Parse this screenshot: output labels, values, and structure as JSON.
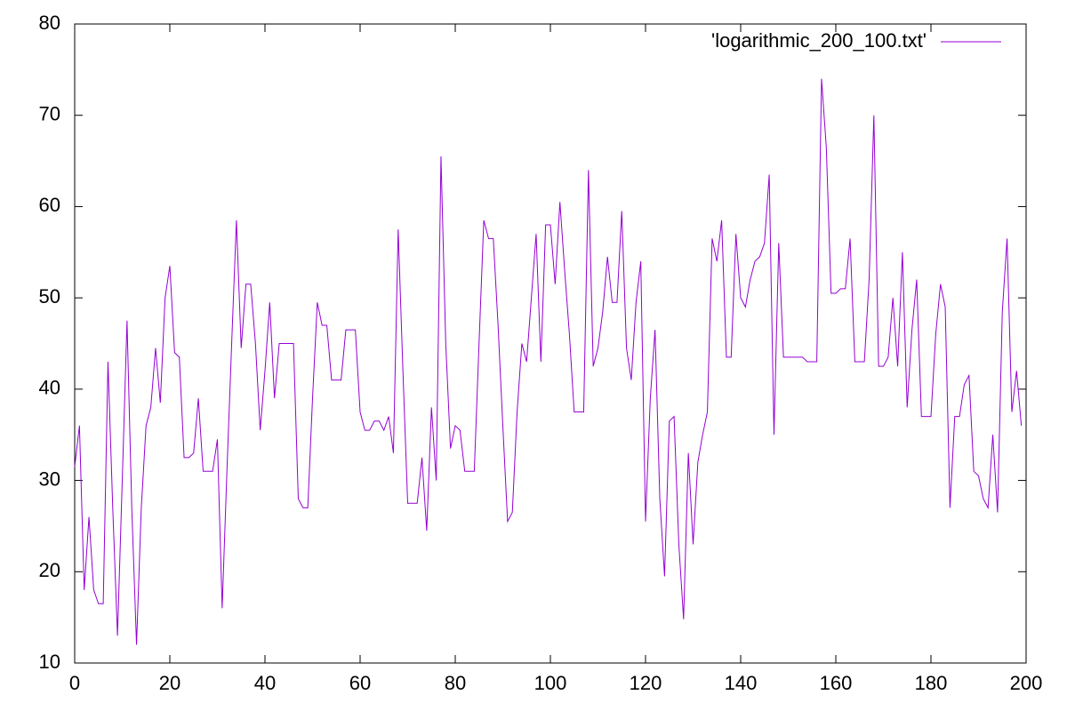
{
  "chart_data": {
    "type": "line",
    "x": [
      0,
      1,
      2,
      3,
      4,
      5,
      6,
      7,
      8,
      9,
      10,
      11,
      12,
      13,
      14,
      15,
      16,
      17,
      18,
      19,
      20,
      21,
      22,
      23,
      24,
      25,
      26,
      27,
      28,
      29,
      30,
      31,
      32,
      33,
      34,
      35,
      36,
      37,
      38,
      39,
      40,
      41,
      42,
      43,
      44,
      45,
      46,
      47,
      48,
      49,
      50,
      51,
      52,
      53,
      54,
      55,
      56,
      57,
      58,
      59,
      60,
      61,
      62,
      63,
      64,
      65,
      66,
      67,
      68,
      69,
      70,
      71,
      72,
      73,
      74,
      75,
      76,
      77,
      78,
      79,
      80,
      81,
      82,
      83,
      84,
      85,
      86,
      87,
      88,
      89,
      90,
      91,
      92,
      93,
      94,
      95,
      96,
      97,
      98,
      99,
      100,
      101,
      102,
      103,
      104,
      105,
      106,
      107,
      108,
      109,
      110,
      111,
      112,
      113,
      114,
      115,
      116,
      117,
      118,
      119,
      120,
      121,
      122,
      123,
      124,
      125,
      126,
      127,
      128,
      129,
      130,
      131,
      132,
      133,
      134,
      135,
      136,
      137,
      138,
      139,
      140,
      141,
      142,
      143,
      144,
      145,
      146,
      147,
      148,
      149,
      150,
      151,
      152,
      153,
      154,
      155,
      156,
      157,
      158,
      159,
      160,
      161,
      162,
      163,
      164,
      165,
      166,
      167,
      168,
      169,
      170,
      171,
      172,
      173,
      174,
      175,
      176,
      177,
      178,
      179,
      180,
      181,
      182,
      183,
      184,
      185,
      186,
      187,
      188,
      189,
      190,
      191,
      192,
      193,
      194,
      195,
      196,
      197,
      198,
      199
    ],
    "series": [
      {
        "name": "'logarithmic_200_100.txt'",
        "color": "#9400d3",
        "values": [
          31.5,
          36,
          18,
          26,
          18,
          16.5,
          16.5,
          43,
          27,
          13,
          30,
          47.5,
          27,
          12,
          27,
          36,
          38,
          44.5,
          38.5,
          50,
          53.5,
          44,
          43.5,
          32.5,
          32.5,
          33,
          39,
          31,
          31,
          31,
          34.5,
          16,
          31,
          45,
          58.5,
          44.5,
          51.5,
          51.5,
          45,
          35.5,
          42,
          49.5,
          39,
          45,
          45,
          45,
          45,
          28,
          27,
          27,
          39,
          49.5,
          47,
          47,
          41,
          41,
          41,
          46.5,
          46.5,
          46.5,
          37.5,
          35.5,
          35.5,
          36.5,
          36.5,
          35.5,
          37,
          33,
          57.5,
          42,
          27.5,
          27.5,
          27.5,
          32.5,
          24.5,
          38,
          30,
          65.5,
          45,
          33.5,
          36,
          35.5,
          31,
          31,
          31,
          45,
          58.5,
          56.5,
          56.5,
          47,
          36,
          25.5,
          26.5,
          37.5,
          45,
          43,
          50,
          57,
          43,
          58,
          58,
          51.5,
          60.5,
          53,
          46,
          37.5,
          37.5,
          37.5,
          64,
          42.5,
          44.5,
          48.5,
          54.5,
          49.5,
          49.5,
          59.5,
          44.5,
          41,
          49.5,
          54,
          25.5,
          39,
          46.5,
          28,
          19.5,
          36.5,
          37,
          23,
          14.8,
          33,
          23,
          32,
          35,
          37.5,
          56.5,
          54,
          58.5,
          43.5,
          43.5,
          57,
          50,
          49,
          52,
          54,
          54.5,
          56,
          63.5,
          35,
          56,
          43.5,
          43.5,
          43.5,
          43.5,
          43.5,
          43,
          43,
          43,
          74,
          66.5,
          50.5,
          50.5,
          51,
          51,
          56.5,
          43,
          43,
          43,
          52,
          70,
          42.5,
          42.5,
          43.5,
          50,
          42.5,
          55,
          38,
          46.5,
          52,
          37,
          37,
          37,
          46,
          51.5,
          49,
          27,
          37,
          37,
          40.5,
          41.5,
          31,
          30.5,
          28,
          27,
          35,
          26.5,
          48.5,
          56.5,
          37.5,
          42,
          36
        ]
      }
    ],
    "xlim": [
      0,
      200
    ],
    "xticks": [
      0,
      20,
      40,
      60,
      80,
      100,
      120,
      140,
      160,
      180,
      200
    ],
    "ylim": [
      10,
      80
    ],
    "yticks": [
      10,
      20,
      30,
      40,
      50,
      60,
      70,
      80
    ],
    "legend": "top-right"
  }
}
